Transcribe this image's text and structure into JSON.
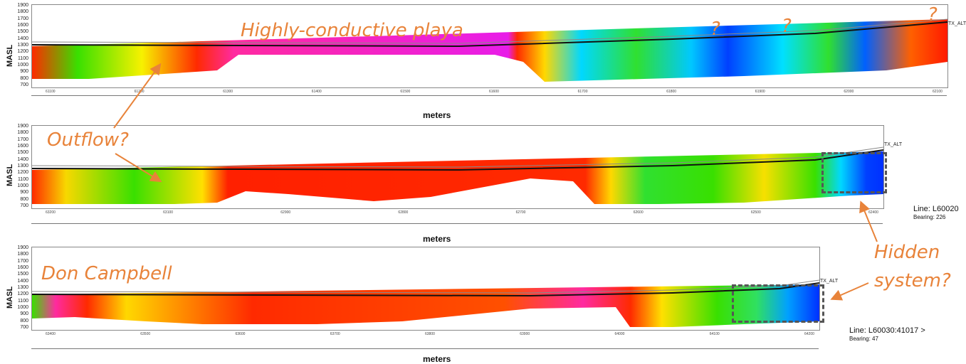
{
  "axis": {
    "ylabel": "MASL",
    "xlabel": "meters",
    "yticks": [
      "1900",
      "1800",
      "1700",
      "1600",
      "1500",
      "1400",
      "1300",
      "1200",
      "1100",
      "1000",
      "900",
      "800",
      "700"
    ],
    "trace_label": "TX_ALT"
  },
  "annotations": {
    "playa": "Highly-conductive playa",
    "question": "?",
    "outflow": "Outflow?",
    "don_campbell": "Don Campbell",
    "hidden_line1": "Hidden",
    "hidden_line2": "system?"
  },
  "panels": {
    "p1": {
      "x_ticks": [
        "61100",
        "61200",
        "61300",
        "61400",
        "61500",
        "61600",
        "61700",
        "61800",
        "61900",
        "62000",
        "62100"
      ]
    },
    "p2": {
      "x_ticks": [
        "63200",
        "63100",
        "62900",
        "62800",
        "62700",
        "62600",
        "62500",
        "62400"
      ],
      "line": "Line: L60020",
      "bearing": "Bearing: 226"
    },
    "p3": {
      "x_ticks": [
        "63400",
        "63500",
        "63600",
        "63700",
        "63800",
        "63900",
        "64000",
        "64100",
        "64200"
      ],
      "line": "Line: L60030:41017 >",
      "bearing": "Bearing: 47"
    }
  },
  "colors": {
    "annotation": "#e8833a",
    "dashed_box": "#555555"
  }
}
